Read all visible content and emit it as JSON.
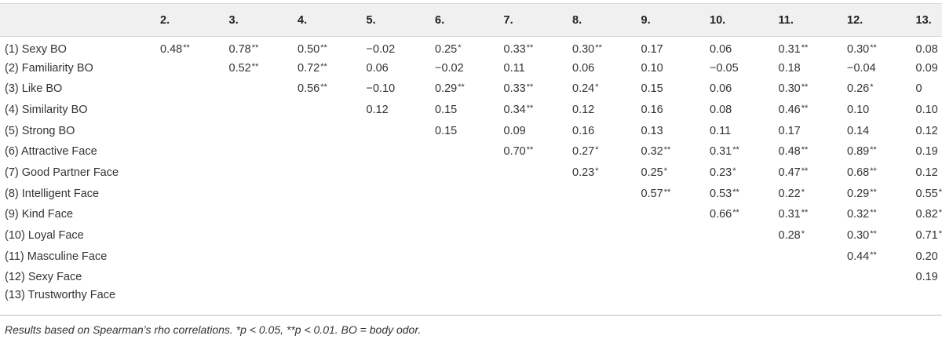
{
  "table": {
    "columns": [
      "",
      "2.",
      "3.",
      "4.",
      "5.",
      "6.",
      "7.",
      "8.",
      "9.",
      "10.",
      "11.",
      "12.",
      "13."
    ],
    "rows": [
      {
        "label": "(1) Sexy BO",
        "cells": [
          {
            "v": "0.48",
            "s": "**"
          },
          {
            "v": "0.78",
            "s": "**"
          },
          {
            "v": "0.50",
            "s": "**"
          },
          {
            "v": "−0.02",
            "s": ""
          },
          {
            "v": "0.25",
            "s": "*"
          },
          {
            "v": "0.33",
            "s": "**"
          },
          {
            "v": "0.30",
            "s": "**"
          },
          {
            "v": "0.17",
            "s": ""
          },
          {
            "v": "0.06",
            "s": ""
          },
          {
            "v": "0.31",
            "s": "**"
          },
          {
            "v": "0.30",
            "s": "**"
          },
          {
            "v": "0.08",
            "s": ""
          }
        ]
      },
      {
        "label": "(2) Familiarity BO",
        "cells": [
          {
            "v": "",
            "s": ""
          },
          {
            "v": "0.52",
            "s": "**"
          },
          {
            "v": "0.72",
            "s": "**"
          },
          {
            "v": "0.06",
            "s": ""
          },
          {
            "v": "−0.02",
            "s": ""
          },
          {
            "v": "0.11",
            "s": ""
          },
          {
            "v": "0.06",
            "s": ""
          },
          {
            "v": "0.10",
            "s": ""
          },
          {
            "v": "−0.05",
            "s": ""
          },
          {
            "v": "0.18",
            "s": ""
          },
          {
            "v": "−0.04",
            "s": ""
          },
          {
            "v": "0.09",
            "s": ""
          }
        ]
      },
      {
        "label": "(3) Like BO",
        "cells": [
          {
            "v": "",
            "s": ""
          },
          {
            "v": "",
            "s": ""
          },
          {
            "v": "0.56",
            "s": "**"
          },
          {
            "v": "−0.10",
            "s": ""
          },
          {
            "v": "0.29",
            "s": "**"
          },
          {
            "v": "0.33",
            "s": "**"
          },
          {
            "v": "0.24",
            "s": "*"
          },
          {
            "v": "0.15",
            "s": ""
          },
          {
            "v": "0.06",
            "s": ""
          },
          {
            "v": "0.30",
            "s": "**"
          },
          {
            "v": "0.26",
            "s": "*"
          },
          {
            "v": "0",
            "s": ""
          }
        ]
      },
      {
        "label": "(4) Similarity BO",
        "cells": [
          {
            "v": "",
            "s": ""
          },
          {
            "v": "",
            "s": ""
          },
          {
            "v": "",
            "s": ""
          },
          {
            "v": "0.12",
            "s": ""
          },
          {
            "v": "0.15",
            "s": ""
          },
          {
            "v": "0.34",
            "s": "**"
          },
          {
            "v": "0.12",
            "s": ""
          },
          {
            "v": "0.16",
            "s": ""
          },
          {
            "v": "0.08",
            "s": ""
          },
          {
            "v": "0.46",
            "s": "**"
          },
          {
            "v": "0.10",
            "s": ""
          },
          {
            "v": "0.10",
            "s": ""
          }
        ]
      },
      {
        "label": "(5) Strong BO",
        "cells": [
          {
            "v": "",
            "s": ""
          },
          {
            "v": "",
            "s": ""
          },
          {
            "v": "",
            "s": ""
          },
          {
            "v": "",
            "s": ""
          },
          {
            "v": "0.15",
            "s": ""
          },
          {
            "v": "0.09",
            "s": ""
          },
          {
            "v": "0.16",
            "s": ""
          },
          {
            "v": "0.13",
            "s": ""
          },
          {
            "v": "0.11",
            "s": ""
          },
          {
            "v": "0.17",
            "s": ""
          },
          {
            "v": "0.14",
            "s": ""
          },
          {
            "v": "0.12",
            "s": ""
          }
        ]
      },
      {
        "label": "(6) Attractive Face",
        "cells": [
          {
            "v": "",
            "s": ""
          },
          {
            "v": "",
            "s": ""
          },
          {
            "v": "",
            "s": ""
          },
          {
            "v": "",
            "s": ""
          },
          {
            "v": "",
            "s": ""
          },
          {
            "v": "0.70",
            "s": "**"
          },
          {
            "v": "0.27",
            "s": "*"
          },
          {
            "v": "0.32",
            "s": "**"
          },
          {
            "v": "0.31",
            "s": "**"
          },
          {
            "v": "0.48",
            "s": "**"
          },
          {
            "v": "0.89",
            "s": "**"
          },
          {
            "v": "0.19",
            "s": ""
          }
        ]
      },
      {
        "label": "(7) Good Partner Face",
        "cells": [
          {
            "v": "",
            "s": ""
          },
          {
            "v": "",
            "s": ""
          },
          {
            "v": "",
            "s": ""
          },
          {
            "v": "",
            "s": ""
          },
          {
            "v": "",
            "s": ""
          },
          {
            "v": "",
            "s": ""
          },
          {
            "v": "0.23",
            "s": "*"
          },
          {
            "v": "0.25",
            "s": "*"
          },
          {
            "v": "0.23",
            "s": "*"
          },
          {
            "v": "0.47",
            "s": "**"
          },
          {
            "v": "0.68",
            "s": "**"
          },
          {
            "v": "0.12",
            "s": ""
          }
        ]
      },
      {
        "label": "(8) Intelligent Face",
        "cells": [
          {
            "v": "",
            "s": ""
          },
          {
            "v": "",
            "s": ""
          },
          {
            "v": "",
            "s": ""
          },
          {
            "v": "",
            "s": ""
          },
          {
            "v": "",
            "s": ""
          },
          {
            "v": "",
            "s": ""
          },
          {
            "v": "",
            "s": ""
          },
          {
            "v": "0.57",
            "s": "**"
          },
          {
            "v": "0.53",
            "s": "**"
          },
          {
            "v": "0.22",
            "s": "*"
          },
          {
            "v": "0.29",
            "s": "**"
          },
          {
            "v": "0.55",
            "s": "**"
          }
        ]
      },
      {
        "label": "(9) Kind Face",
        "cells": [
          {
            "v": "",
            "s": ""
          },
          {
            "v": "",
            "s": ""
          },
          {
            "v": "",
            "s": ""
          },
          {
            "v": "",
            "s": ""
          },
          {
            "v": "",
            "s": ""
          },
          {
            "v": "",
            "s": ""
          },
          {
            "v": "",
            "s": ""
          },
          {
            "v": "",
            "s": ""
          },
          {
            "v": "0.66",
            "s": "**"
          },
          {
            "v": "0.31",
            "s": "**"
          },
          {
            "v": "0.32",
            "s": "**"
          },
          {
            "v": "0.82",
            "s": "**"
          }
        ]
      },
      {
        "label": "(10) Loyal Face",
        "cells": [
          {
            "v": "",
            "s": ""
          },
          {
            "v": "",
            "s": ""
          },
          {
            "v": "",
            "s": ""
          },
          {
            "v": "",
            "s": ""
          },
          {
            "v": "",
            "s": ""
          },
          {
            "v": "",
            "s": ""
          },
          {
            "v": "",
            "s": ""
          },
          {
            "v": "",
            "s": ""
          },
          {
            "v": "",
            "s": ""
          },
          {
            "v": "0.28",
            "s": "*"
          },
          {
            "v": "0.30",
            "s": "**"
          },
          {
            "v": "0.71",
            "s": "**"
          }
        ]
      },
      {
        "label": "(11) Masculine Face",
        "cells": [
          {
            "v": "",
            "s": ""
          },
          {
            "v": "",
            "s": ""
          },
          {
            "v": "",
            "s": ""
          },
          {
            "v": "",
            "s": ""
          },
          {
            "v": "",
            "s": ""
          },
          {
            "v": "",
            "s": ""
          },
          {
            "v": "",
            "s": ""
          },
          {
            "v": "",
            "s": ""
          },
          {
            "v": "",
            "s": ""
          },
          {
            "v": "",
            "s": ""
          },
          {
            "v": "0.44",
            "s": "**"
          },
          {
            "v": "0.20",
            "s": ""
          }
        ]
      },
      {
        "label": "(12) Sexy Face",
        "cells": [
          {
            "v": "",
            "s": ""
          },
          {
            "v": "",
            "s": ""
          },
          {
            "v": "",
            "s": ""
          },
          {
            "v": "",
            "s": ""
          },
          {
            "v": "",
            "s": ""
          },
          {
            "v": "",
            "s": ""
          },
          {
            "v": "",
            "s": ""
          },
          {
            "v": "",
            "s": ""
          },
          {
            "v": "",
            "s": ""
          },
          {
            "v": "",
            "s": ""
          },
          {
            "v": "",
            "s": ""
          },
          {
            "v": "0.19",
            "s": ""
          }
        ]
      },
      {
        "label": "(13) Trustworthy Face",
        "cells": [
          {
            "v": "",
            "s": ""
          },
          {
            "v": "",
            "s": ""
          },
          {
            "v": "",
            "s": ""
          },
          {
            "v": "",
            "s": ""
          },
          {
            "v": "",
            "s": ""
          },
          {
            "v": "",
            "s": ""
          },
          {
            "v": "",
            "s": ""
          },
          {
            "v": "",
            "s": ""
          },
          {
            "v": "",
            "s": ""
          },
          {
            "v": "",
            "s": ""
          },
          {
            "v": "",
            "s": ""
          },
          {
            "v": "",
            "s": ""
          }
        ]
      }
    ]
  },
  "footnote": "Results based on Spearman’s rho correlations. *p < 0.05, **p < 0.01. BO = body odor."
}
